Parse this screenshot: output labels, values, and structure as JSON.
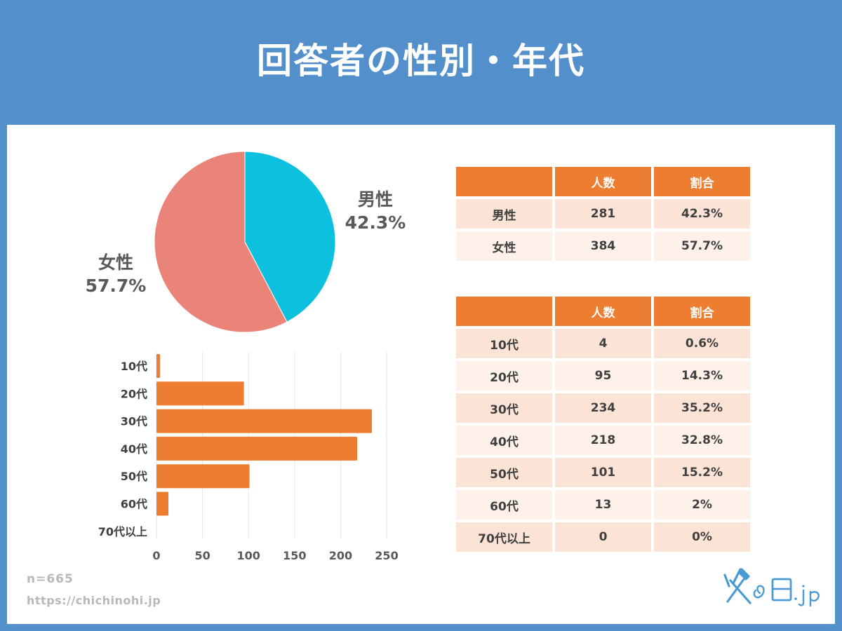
{
  "header": {
    "title": "回答者の性別・年代"
  },
  "colors": {
    "header_bg": "#528fcb",
    "male": "#0dc1de",
    "female": "#ea8478",
    "bar": "#ed7d31",
    "table_header": "#ed7d31",
    "logo": "#4a9bd4"
  },
  "chart_data": [
    {
      "type": "pie",
      "slices": [
        {
          "label": "男性",
          "value": 42.3,
          "value_label": "42.3%",
          "color": "#0dc1de"
        },
        {
          "label": "女性",
          "value": 57.7,
          "value_label": "57.7%",
          "color": "#ea8478"
        }
      ]
    },
    {
      "type": "bar",
      "orientation": "horizontal",
      "categories": [
        "10代",
        "20代",
        "30代",
        "40代",
        "50代",
        "60代",
        "70代以上"
      ],
      "values": [
        4,
        95,
        234,
        218,
        101,
        13,
        0
      ],
      "xlim": [
        0,
        250
      ],
      "xticks": [
        0,
        50,
        100,
        150,
        200,
        250
      ],
      "grid": true,
      "color": "#ed7d31"
    }
  ],
  "gender_table": {
    "headers": [
      "",
      "人数",
      "割合"
    ],
    "rows": [
      [
        "男性",
        "281",
        "42.3%"
      ],
      [
        "女性",
        "384",
        "57.7%"
      ]
    ]
  },
  "age_table": {
    "headers": [
      "",
      "人数",
      "割合"
    ],
    "rows": [
      [
        "10代",
        "4",
        "0.6%"
      ],
      [
        "20代",
        "95",
        "14.3%"
      ],
      [
        "30代",
        "234",
        "35.2%"
      ],
      [
        "40代",
        "218",
        "32.8%"
      ],
      [
        "50代",
        "101",
        "15.2%"
      ],
      [
        "60代",
        "13",
        "2%"
      ],
      [
        "70代以上",
        "0",
        "0%"
      ]
    ]
  },
  "footer": {
    "sample_size": "n=665",
    "url": "https://chichinohi.jp"
  },
  "logo": {
    "text": "父の日.jp"
  }
}
